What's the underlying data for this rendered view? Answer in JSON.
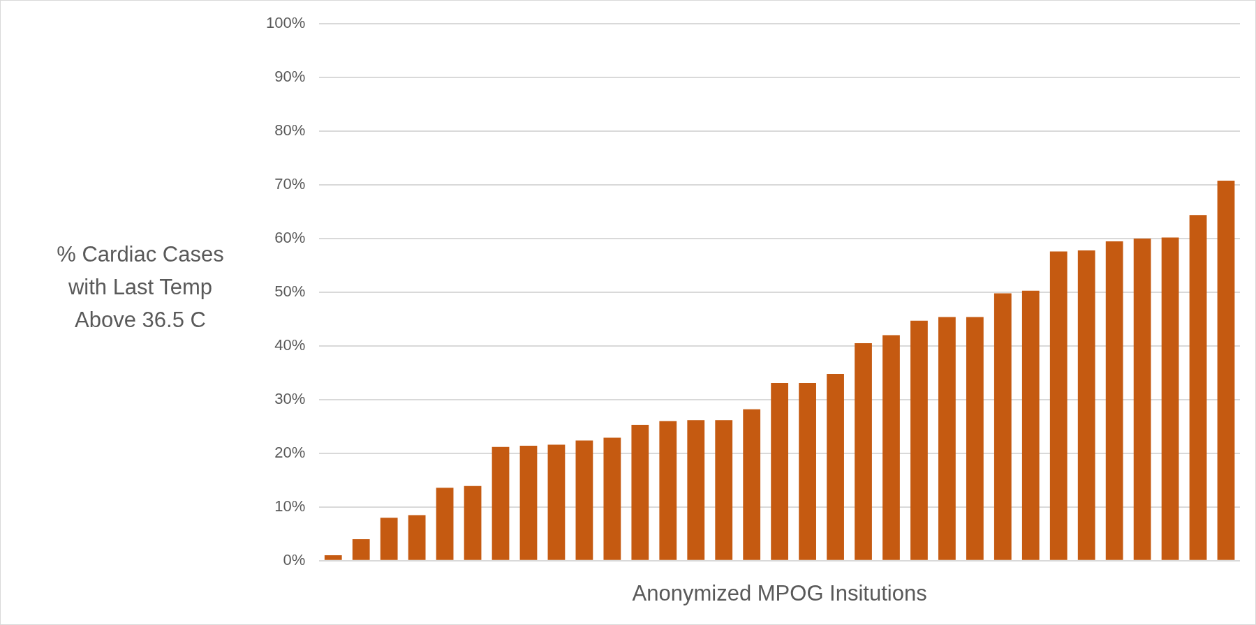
{
  "chart_data": {
    "type": "bar",
    "ylabel": "% Cardiac Cases with Last Temp Above 36.5 C",
    "xlabel": "Anonymized MPOG Insitutions",
    "categories": [
      null,
      null,
      null,
      null,
      null,
      null,
      null,
      null,
      null,
      null,
      null,
      null,
      null,
      null,
      null,
      null,
      null,
      null,
      null,
      null,
      null,
      null,
      null,
      null,
      null,
      null,
      null,
      null,
      null,
      null,
      null,
      null,
      null
    ],
    "values": [
      1,
      4,
      8,
      8.5,
      13.6,
      13.9,
      21.2,
      21.4,
      21.6,
      22.4,
      22.9,
      25.3,
      26,
      26.2,
      26.2,
      28.2,
      33.1,
      33.1,
      34.8,
      40.5,
      42,
      44.7,
      45.4,
      45.4,
      49.8,
      50.3,
      57.6,
      57.8,
      59.5,
      60,
      60.2,
      64.4,
      70.8
    ],
    "color": "#c55a11",
    "ylim": [
      0,
      100
    ],
    "yticks": [
      {
        "value": 0,
        "label": "0%"
      },
      {
        "value": 10,
        "label": "10%"
      },
      {
        "value": 20,
        "label": "20%"
      },
      {
        "value": 30,
        "label": "30%"
      },
      {
        "value": 40,
        "label": "40%"
      },
      {
        "value": 50,
        "label": "50%"
      },
      {
        "value": 60,
        "label": "60%"
      },
      {
        "value": 70,
        "label": "70%"
      },
      {
        "value": 80,
        "label": "80%"
      },
      {
        "value": 90,
        "label": "90%"
      },
      {
        "value": 100,
        "label": "100%"
      }
    ],
    "grid": "y",
    "legend": false,
    "tick_labels": "y"
  }
}
